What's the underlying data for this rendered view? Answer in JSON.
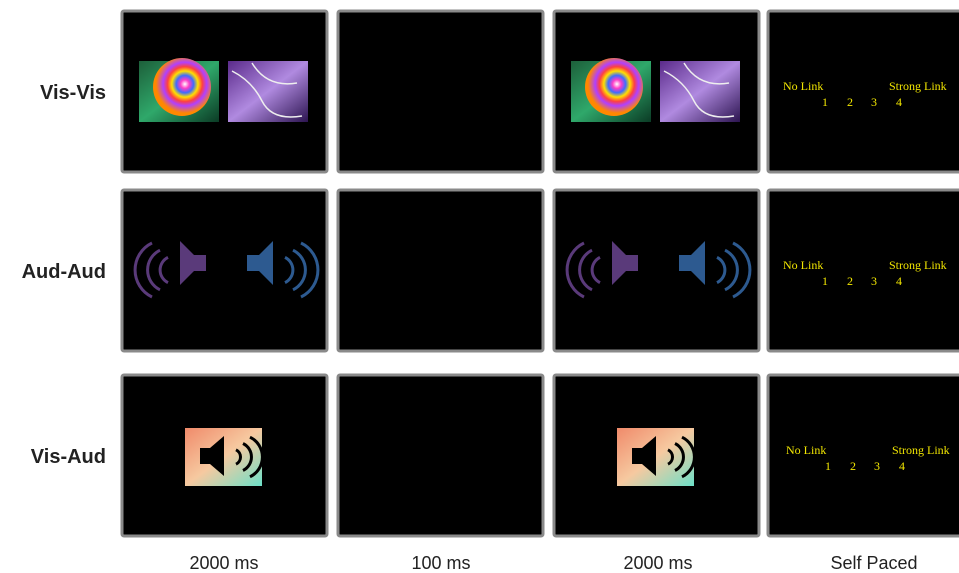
{
  "rows": [
    {
      "label": "Vis-Vis",
      "scale_low": "No Link",
      "scale_high": "Strong Link",
      "scale_points": [
        1,
        2,
        3,
        4
      ]
    },
    {
      "label": "Aud-Aud",
      "scale_low": "No Link",
      "scale_high": "Strong Link",
      "scale_points": [
        1,
        2,
        3,
        4
      ]
    },
    {
      "label": "Vis-Aud",
      "scale_low": "No Link",
      "scale_high": "Strong Link",
      "scale_points": [
        1,
        2,
        3,
        4
      ]
    }
  ],
  "columns": [
    "2000 ms",
    "100 ms",
    "2000 ms",
    "Self Paced"
  ]
}
